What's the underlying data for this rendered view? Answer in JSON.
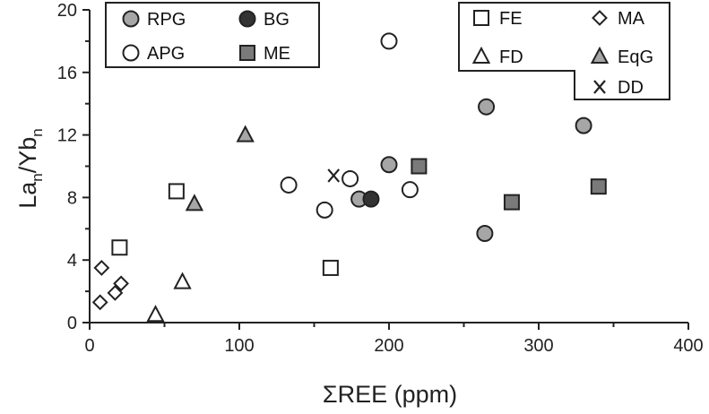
{
  "chart_data": {
    "type": "scatter",
    "title": "",
    "xlabel": "ΣREE (ppm)",
    "ylabel": {
      "base1": "La",
      "sub1": "n",
      "mid": "/Yb",
      "sub2": "n"
    },
    "xlim": [
      0,
      400
    ],
    "ylim": [
      0,
      20
    ],
    "xticks": [
      "0",
      "100",
      "200",
      "300",
      "400"
    ],
    "yticks": [
      "0",
      "4",
      "8",
      "12",
      "16",
      "20"
    ],
    "grid": false,
    "legend_left": [
      {
        "label": "RPG",
        "marker": "circle",
        "fill": "#a6a6a6"
      },
      {
        "label": "BG",
        "marker": "circle",
        "fill": "#333333"
      },
      {
        "label": "APG",
        "marker": "circle",
        "fill": "#ffffff"
      },
      {
        "label": "ME",
        "marker": "square",
        "fill": "#7a7a7a"
      }
    ],
    "legend_right": [
      {
        "label": "FE",
        "marker": "square",
        "fill": "#ffffff"
      },
      {
        "label": "MA",
        "marker": "diamond",
        "fill": "#ffffff"
      },
      {
        "label": "FD",
        "marker": "triangle",
        "fill": "#ffffff"
      },
      {
        "label": "EqG",
        "marker": "triangle",
        "fill": "#a6a6a6"
      },
      {
        "label": "DD",
        "marker": "x",
        "fill": "none"
      }
    ],
    "series": [
      {
        "name": "RPG",
        "marker": "circle",
        "fill": "#a6a6a6",
        "points": [
          [
            200,
            10.1
          ],
          [
            180,
            7.9
          ],
          [
            265,
            13.8
          ],
          [
            264,
            5.7
          ],
          [
            330,
            12.6
          ]
        ]
      },
      {
        "name": "BG",
        "marker": "circle",
        "fill": "#333333",
        "points": [
          [
            188,
            7.9
          ]
        ]
      },
      {
        "name": "APG",
        "marker": "circle",
        "fill": "#ffffff",
        "points": [
          [
            200,
            18.0
          ],
          [
            133,
            8.8
          ],
          [
            157,
            7.2
          ],
          [
            174,
            9.2
          ],
          [
            214,
            8.5
          ]
        ]
      },
      {
        "name": "ME",
        "marker": "square",
        "fill": "#7a7a7a",
        "points": [
          [
            220,
            10.0
          ],
          [
            282,
            7.7
          ],
          [
            340,
            8.7
          ]
        ]
      },
      {
        "name": "FE",
        "marker": "square",
        "fill": "#ffffff",
        "points": [
          [
            58,
            8.4
          ],
          [
            20,
            4.8
          ],
          [
            161,
            3.5
          ]
        ]
      },
      {
        "name": "MA",
        "marker": "diamond",
        "fill": "#ffffff",
        "points": [
          [
            8,
            3.5
          ],
          [
            7,
            1.3
          ],
          [
            17,
            1.9
          ],
          [
            21,
            2.5
          ]
        ]
      },
      {
        "name": "FD",
        "marker": "triangle",
        "fill": "#ffffff",
        "points": [
          [
            62,
            2.6
          ],
          [
            44,
            0.5
          ]
        ]
      },
      {
        "name": "EqG",
        "marker": "triangle",
        "fill": "#a6a6a6",
        "points": [
          [
            104,
            12.0
          ],
          [
            70,
            7.6
          ]
        ]
      },
      {
        "name": "DD",
        "marker": "x",
        "fill": "none",
        "points": [
          [
            163,
            9.4
          ]
        ]
      }
    ]
  }
}
